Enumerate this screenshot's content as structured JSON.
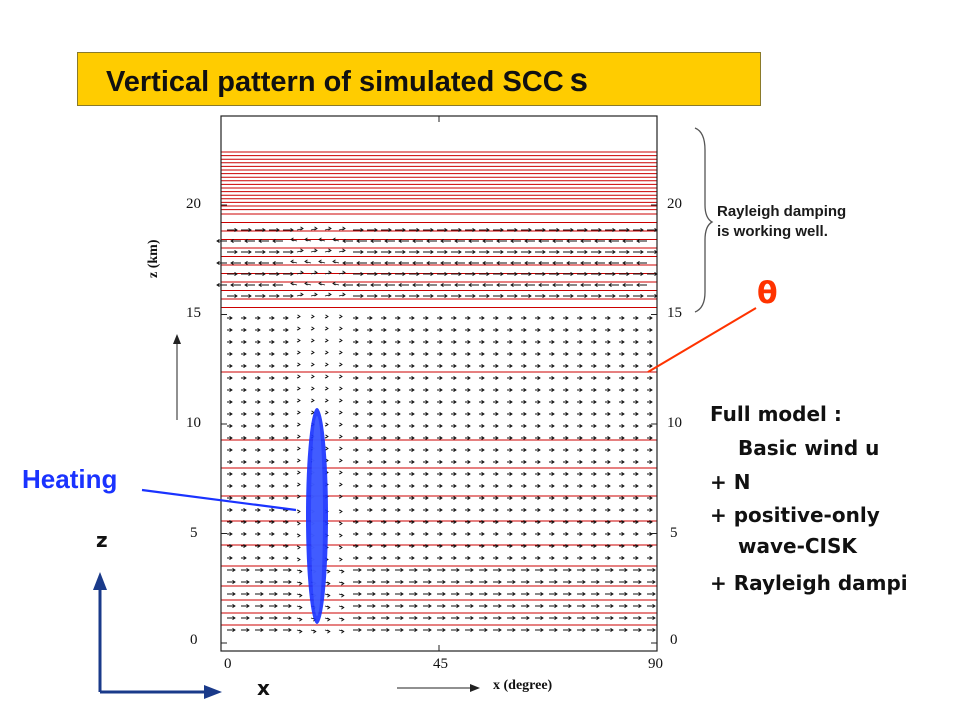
{
  "title": {
    "main": "Vertical pattern of simulated SCC",
    "suffix": "s"
  },
  "plot": {
    "y_axis_label": "z (km)",
    "x_axis_label": "x (degree)",
    "y_ticks": [
      "0",
      "5",
      "10",
      "15",
      "20"
    ],
    "x_ticks": [
      "0",
      "45",
      "90"
    ]
  },
  "annotations": {
    "rayleigh_line1": "Rayleigh damping",
    "rayleigh_line2": "is working well.",
    "theta": "θ",
    "heating": "Heating",
    "axis_z": "z",
    "axis_x": "x"
  },
  "model_description": {
    "line1": "Full model :",
    "line2": "Basic wind u",
    "line3": "+ N",
    "line4": "+ positive-only",
    "line5": "wave-CISK",
    "line6": "+ Rayleigh dampi"
  },
  "colors": {
    "title_bg": "#ffcc00",
    "theta_lines": "#cc0000",
    "heating": "#1a33ff",
    "theta_arrow": "#ff3300"
  }
}
